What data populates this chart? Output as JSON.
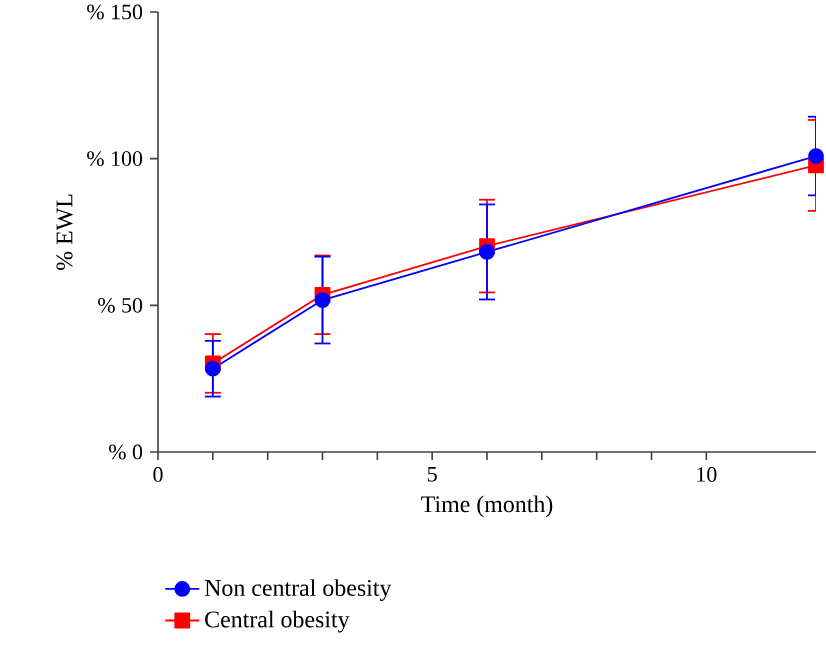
{
  "chart_data": {
    "type": "line",
    "xlabel": "Time (month)",
    "ylabel": "% EWL",
    "x": [
      1,
      3,
      6,
      12
    ],
    "series": [
      {
        "name": "Non central obesity",
        "color": "#0000ff",
        "marker": "circle",
        "values": [
          28.4,
          51.8,
          68.2,
          100.9
        ],
        "errors": [
          9.5,
          14.8,
          16.2,
          13.4
        ]
      },
      {
        "name": "Central obesity",
        "color": "#ff0000",
        "marker": "square",
        "values": [
          30.2,
          53.6,
          70.2,
          97.7
        ],
        "errors": [
          10,
          13.4,
          15.8,
          15.5
        ]
      }
    ],
    "xlim": [
      0,
      12
    ],
    "xticks": [
      0,
      5,
      10
    ],
    "ylim": [
      0,
      150
    ],
    "yticks": [
      {
        "value": 0,
        "label": "% 0"
      },
      {
        "value": 50,
        "label": "% 50"
      },
      {
        "value": 100,
        "label": "% 100"
      },
      {
        "value": 150,
        "label": "% 150"
      }
    ],
    "grid": false,
    "legend": "bottom"
  }
}
